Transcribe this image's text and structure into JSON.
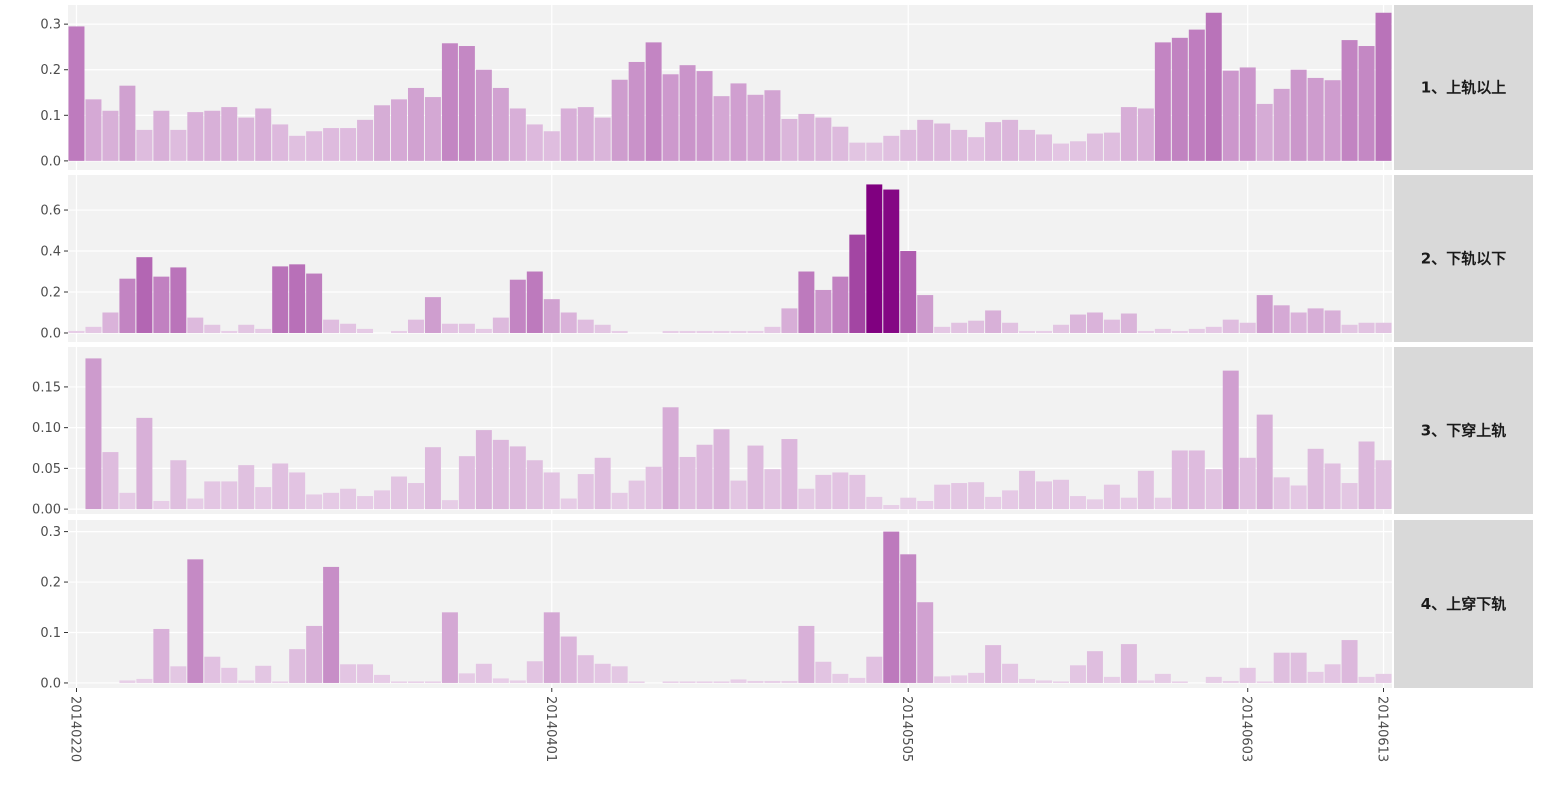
{
  "chart_data": {
    "type": "bar",
    "categories": [
      "20140220",
      null,
      null,
      null,
      null,
      null,
      null,
      null,
      null,
      null,
      null,
      null,
      null,
      null,
      null,
      null,
      null,
      null,
      null,
      null,
      null,
      null,
      null,
      null,
      null,
      null,
      null,
      null,
      "20140401",
      null,
      null,
      null,
      null,
      null,
      null,
      null,
      null,
      null,
      null,
      null,
      null,
      null,
      null,
      null,
      null,
      null,
      null,
      null,
      null,
      "20140505",
      null,
      null,
      null,
      null,
      null,
      null,
      null,
      null,
      null,
      null,
      null,
      null,
      null,
      null,
      null,
      null,
      null,
      null,
      null,
      "20140603",
      null,
      null,
      null,
      null,
      null,
      null,
      null,
      "20140613"
    ],
    "fill_gradient": [
      "#e8d0e8",
      "#800080"
    ],
    "grid": true,
    "facets": [
      {
        "label": "1、上轨以上",
        "ylim": [
          -0.02,
          0.342
        ],
        "yticks": [
          {
            "value": 0,
            "label": "0.0"
          },
          0.1,
          0.2,
          0.3
        ],
        "values": [
          0.295,
          0.135,
          0.11,
          0.165,
          0.068,
          0.11,
          0.068,
          0.107,
          0.11,
          0.118,
          0.095,
          0.115,
          0.08,
          0.055,
          0.065,
          0.072,
          0.072,
          0.09,
          0.122,
          0.135,
          0.16,
          0.14,
          0.258,
          0.252,
          0.2,
          0.16,
          0.115,
          0.08,
          0.065,
          0.115,
          0.118,
          0.095,
          0.178,
          0.217,
          0.26,
          0.19,
          0.21,
          0.197,
          0.142,
          0.17,
          0.145,
          0.155,
          0.092,
          0.103,
          0.095,
          0.075,
          0.04,
          0.04,
          0.055,
          0.068,
          0.09,
          0.082,
          0.068,
          0.052,
          0.085,
          0.09,
          0.068,
          0.058,
          0.038,
          0.043,
          0.06,
          0.062,
          0.118,
          0.115,
          0.26,
          0.27,
          0.288,
          0.325,
          0.198,
          0.205,
          0.125,
          0.158,
          0.2,
          0.182,
          0.177,
          0.265,
          0.252,
          0.325
        ]
      },
      {
        "label": "2、下轨以下",
        "ylim": [
          -0.044,
          0.771
        ],
        "yticks": [
          {
            "value": 0,
            "label": "0.0"
          },
          0.2,
          0.4,
          0.6
        ],
        "values": [
          0.01,
          0.03,
          0.1,
          0.265,
          0.37,
          0.275,
          0.32,
          0.075,
          0.04,
          0.01,
          0.04,
          0.02,
          0.325,
          0.335,
          0.29,
          0.065,
          0.045,
          0.02,
          0,
          0.01,
          0.065,
          0.175,
          0.045,
          0.045,
          0.02,
          0.075,
          0.26,
          0.3,
          0.165,
          0.1,
          0.065,
          0.04,
          0.01,
          0,
          0,
          0.01,
          0.01,
          0.01,
          0.01,
          0.01,
          0.01,
          0.03,
          0.12,
          0.3,
          0.21,
          0.275,
          0.48,
          0.725,
          0.7,
          0.4,
          0.185,
          0.03,
          0.05,
          0.06,
          0.11,
          0.05,
          0.01,
          0.01,
          0.04,
          0.09,
          0.1,
          0.065,
          0.095,
          0.01,
          0.02,
          0.01,
          0.02,
          0.03,
          0.065,
          0.05,
          0.185,
          0.135,
          0.1,
          0.12,
          0.11,
          0.04,
          0.05,
          0.05
        ]
      },
      {
        "label": "3、下穿上轨",
        "ylim": [
          -0.006,
          0.199
        ],
        "yticks": [
          {
            "value": 0,
            "label": "0.00"
          },
          0.05,
          {
            "value": 0.1,
            "label": "0.10"
          },
          0.15
        ],
        "values": [
          0,
          0.185,
          0.07,
          0.02,
          0.112,
          0.01,
          0.06,
          0.013,
          0.034,
          0.034,
          0.054,
          0.027,
          0.056,
          0.045,
          0.018,
          0.02,
          0.025,
          0.016,
          0.023,
          0.04,
          0.032,
          0.076,
          0.011,
          0.065,
          0.097,
          0.085,
          0.077,
          0.06,
          0.045,
          0.013,
          0.043,
          0.063,
          0.02,
          0.035,
          0.052,
          0.125,
          0.064,
          0.079,
          0.098,
          0.035,
          0.078,
          0.049,
          0.086,
          0.025,
          0.042,
          0.045,
          0.042,
          0.015,
          0.005,
          0.014,
          0.01,
          0.03,
          0.032,
          0.033,
          0.015,
          0.023,
          0.047,
          0.034,
          0.036,
          0.016,
          0.012,
          0.03,
          0.014,
          0.047,
          0.014,
          0.072,
          0.072,
          0.049,
          0.17,
          0.063,
          0.116,
          0.039,
          0.029,
          0.074,
          0.056,
          0.032,
          0.083,
          0.06
        ]
      },
      {
        "label": "4、上穿下轨",
        "ylim": [
          -0.01,
          0.323
        ],
        "yticks": [
          {
            "value": 0,
            "label": "0.0"
          },
          0.1,
          0.2,
          0.3
        ],
        "values": [
          0,
          0,
          0,
          0.005,
          0.008,
          0.107,
          0.033,
          0.245,
          0.052,
          0.03,
          0.005,
          0.034,
          0.003,
          0.067,
          0.113,
          0.23,
          0.037,
          0.037,
          0.016,
          0.003,
          0.003,
          0.003,
          0.14,
          0.019,
          0.038,
          0.009,
          0.005,
          0.043,
          0.14,
          0.092,
          0.055,
          0.038,
          0.033,
          0.003,
          0,
          0.003,
          0.003,
          0.003,
          0.003,
          0.007,
          0.004,
          0.004,
          0.004,
          0.113,
          0.042,
          0.018,
          0.01,
          0.052,
          0.3,
          0.255,
          0.16,
          0.013,
          0.015,
          0.02,
          0.075,
          0.038,
          0.008,
          0.005,
          0.003,
          0.035,
          0.063,
          0.012,
          0.077,
          0.005,
          0.018,
          0.003,
          0,
          0.012,
          0.004,
          0.03,
          0.003,
          0.06,
          0.06,
          0.022,
          0.037,
          0.085,
          0.012,
          0.018
        ]
      }
    ]
  }
}
